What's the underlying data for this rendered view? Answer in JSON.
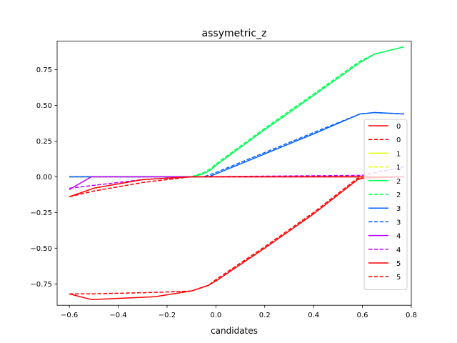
{
  "chart_data": {
    "type": "line",
    "title": "assymetric_z",
    "xlabel": "candidates",
    "ylabel": "",
    "xlim": [
      -0.65,
      0.8
    ],
    "ylim": [
      -0.9,
      0.95
    ],
    "grid": false,
    "legend_placement": "right",
    "x_ticks": [
      -0.6,
      -0.4,
      -0.2,
      0.0,
      0.2,
      0.4,
      0.6,
      0.8
    ],
    "x_tick_labels": [
      "−0.6",
      "−0.4",
      "−0.2",
      "0.0",
      "0.2",
      "0.4",
      "0.6",
      "0.8"
    ],
    "y_ticks": [
      -0.75,
      -0.5,
      -0.25,
      0.0,
      0.25,
      0.5,
      0.75
    ],
    "y_tick_labels": [
      "−0.75",
      "−0.50",
      "−0.25",
      "0.00",
      "0.25",
      "0.50",
      "0.75"
    ],
    "series": [
      {
        "name": "0",
        "color": "#ff0000",
        "dash": false,
        "points": [
          [
            -0.6,
            0
          ],
          [
            0.77,
            0
          ]
        ]
      },
      {
        "name": "0",
        "color": "#ff0000",
        "dash": true,
        "points": [
          [
            -0.6,
            0
          ],
          [
            0.77,
            0
          ]
        ]
      },
      {
        "name": "1",
        "color": "#dfff00",
        "dash": false,
        "points": [
          [
            -0.6,
            0
          ],
          [
            0.77,
            0
          ]
        ]
      },
      {
        "name": "1",
        "color": "#dfff00",
        "dash": true,
        "points": [
          [
            -0.6,
            0
          ],
          [
            0.77,
            0
          ]
        ]
      },
      {
        "name": "2",
        "color": "#00ff55",
        "dash": false,
        "points": [
          [
            -0.1,
            0
          ],
          [
            -0.05,
            0.02
          ],
          [
            -0.02,
            0.05
          ],
          [
            0.0,
            0.08
          ],
          [
            0.2,
            0.33
          ],
          [
            0.4,
            0.57
          ],
          [
            0.59,
            0.8
          ],
          [
            0.65,
            0.86
          ],
          [
            0.77,
            0.91
          ]
        ]
      },
      {
        "name": "2",
        "color": "#00ff55",
        "dash": true,
        "points": [
          [
            -0.1,
            0
          ],
          [
            -0.05,
            0.03
          ],
          [
            -0.02,
            0.06
          ],
          [
            0.0,
            0.09
          ],
          [
            0.2,
            0.34
          ],
          [
            0.4,
            0.58
          ],
          [
            0.59,
            0.81
          ],
          [
            0.65,
            0.86
          ],
          [
            0.77,
            0.91
          ]
        ]
      },
      {
        "name": "3",
        "color": "#0061ff",
        "dash": false,
        "points": [
          [
            -0.6,
            0
          ],
          [
            -0.03,
            0
          ],
          [
            0.0,
            0.02
          ],
          [
            0.2,
            0.16
          ],
          [
            0.4,
            0.3
          ],
          [
            0.59,
            0.44
          ],
          [
            0.65,
            0.45
          ],
          [
            0.77,
            0.44
          ]
        ]
      },
      {
        "name": "3",
        "color": "#0061ff",
        "dash": true,
        "points": [
          [
            -0.6,
            0
          ],
          [
            -0.05,
            0
          ],
          [
            0.0,
            0.03
          ],
          [
            0.2,
            0.17
          ],
          [
            0.4,
            0.31
          ],
          [
            0.59,
            0.44
          ],
          [
            0.65,
            0.45
          ],
          [
            0.77,
            0.44
          ]
        ]
      },
      {
        "name": "4",
        "color": "#bf00ff",
        "dash": false,
        "points": [
          [
            -0.6,
            -0.09
          ],
          [
            -0.51,
            0
          ],
          [
            0.77,
            0
          ]
        ]
      },
      {
        "name": "4",
        "color": "#bf00ff",
        "dash": true,
        "points": [
          [
            -0.6,
            -0.08
          ],
          [
            -0.5,
            -0.06
          ],
          [
            -0.4,
            -0.04
          ],
          [
            -0.3,
            -0.02
          ],
          [
            -0.2,
            -0.01
          ],
          [
            -0.1,
            0
          ],
          [
            0.6,
            0.01
          ],
          [
            0.77,
            0.07
          ]
        ]
      },
      {
        "name": "5",
        "color": "#ff0000",
        "dash": false,
        "points": [
          [
            -0.6,
            -0.82
          ],
          [
            -0.51,
            -0.86
          ],
          [
            -0.25,
            -0.84
          ],
          [
            -0.1,
            -0.8
          ],
          [
            -0.03,
            -0.76
          ],
          [
            0.0,
            -0.73
          ],
          [
            0.2,
            -0.5
          ],
          [
            0.4,
            -0.26
          ],
          [
            0.58,
            -0.02
          ],
          [
            0.6,
            -0.01
          ],
          [
            0.77,
            0
          ]
        ]
      },
      {
        "name": "5",
        "color": "#ff0000",
        "dash": true,
        "points": [
          [
            -0.6,
            -0.82
          ],
          [
            -0.51,
            -0.82
          ],
          [
            -0.25,
            -0.81
          ],
          [
            -0.1,
            -0.8
          ],
          [
            -0.03,
            -0.76
          ],
          [
            0.0,
            -0.72
          ],
          [
            0.2,
            -0.49
          ],
          [
            0.4,
            -0.25
          ],
          [
            0.58,
            -0.01
          ],
          [
            0.6,
            -0.01
          ],
          [
            0.77,
            0
          ]
        ]
      },
      {
        "name": "",
        "color": "#ff0000",
        "dash": false,
        "points": [
          [
            -0.6,
            -0.14
          ],
          [
            -0.5,
            -0.08
          ],
          [
            -0.4,
            -0.05
          ],
          [
            -0.3,
            -0.02
          ],
          [
            -0.2,
            -0.01
          ],
          [
            -0.1,
            0
          ],
          [
            0.77,
            0
          ]
        ]
      },
      {
        "name": "",
        "color": "#ff0000",
        "dash": true,
        "points": [
          [
            -0.6,
            -0.14
          ],
          [
            -0.5,
            -0.1
          ],
          [
            -0.4,
            -0.07
          ],
          [
            -0.3,
            -0.04
          ],
          [
            -0.2,
            -0.02
          ],
          [
            -0.1,
            0
          ],
          [
            0.77,
            0
          ]
        ]
      }
    ]
  }
}
